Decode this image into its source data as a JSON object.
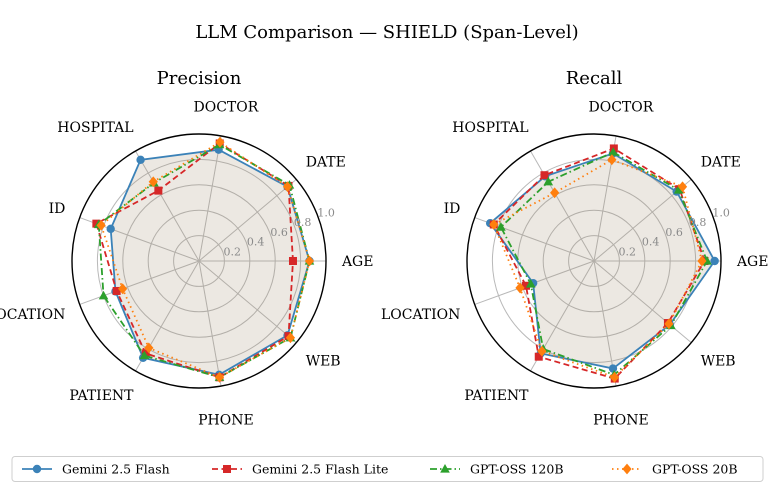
{
  "chart_data": {
    "type": "radar",
    "title": "LLM Comparison — SHIELD (Span-Level)",
    "categories": [
      "AGE",
      "DATE",
      "DOCTOR",
      "HOSPITAL",
      "ID",
      "LOCATION",
      "PATIENT",
      "PHONE",
      "WEB"
    ],
    "radial_ticks": [
      "0.2",
      "0.4",
      "0.6",
      "0.8",
      "1.0"
    ],
    "rlim": [
      0,
      1.0
    ],
    "grid": true,
    "legend_position": "bottom",
    "series_styles": [
      {
        "name": "Gemini 2.5 Flash",
        "color": "#3b82b8",
        "marker": "circle",
        "dash": "solid"
      },
      {
        "name": "Gemini 2.5 Flash Lite",
        "color": "#d62728",
        "marker": "square",
        "dash": "dashed"
      },
      {
        "name": "GPT-OSS 120B",
        "color": "#2ca02c",
        "marker": "triangle",
        "dash": "dashdot"
      },
      {
        "name": "GPT-OSS 20B",
        "color": "#ff7f0e",
        "marker": "diamond",
        "dash": "dotted"
      }
    ],
    "panels": [
      {
        "title": "Precision",
        "series": [
          {
            "name": "Gemini 2.5 Flash",
            "values": [
              0.87,
              0.91,
              0.89,
              0.92,
              0.74,
              0.7,
              0.88,
              0.91,
              0.91
            ]
          },
          {
            "name": "Gemini 2.5 Flash Lite",
            "values": [
              0.74,
              0.92,
              0.94,
              0.64,
              0.86,
              0.69,
              0.84,
              0.93,
              0.92
            ]
          },
          {
            "name": "GPT-OSS 120B",
            "values": [
              0.87,
              0.93,
              0.93,
              0.71,
              0.84,
              0.8,
              0.86,
              0.93,
              0.94
            ]
          },
          {
            "name": "GPT-OSS 20B",
            "values": [
              0.87,
              0.91,
              0.95,
              0.72,
              0.82,
              0.64,
              0.79,
              0.93,
              0.94
            ]
          }
        ]
      },
      {
        "title": "Recall",
        "series": [
          {
            "name": "Gemini 2.5 Flash",
            "values": [
              0.95,
              0.85,
              0.86,
              0.77,
              0.87,
              0.51,
              0.84,
              0.86,
              0.78
            ]
          },
          {
            "name": "Gemini 2.5 Flash Lite",
            "values": [
              0.87,
              0.88,
              0.9,
              0.78,
              0.84,
              0.57,
              0.87,
              0.94,
              0.76
            ]
          },
          {
            "name": "GPT-OSS 120B",
            "values": [
              0.89,
              0.87,
              0.87,
              0.72,
              0.78,
              0.53,
              0.8,
              0.91,
              0.79
            ]
          },
          {
            "name": "GPT-OSS 20B",
            "values": [
              0.85,
              0.91,
              0.81,
              0.62,
              0.84,
              0.62,
              0.82,
              0.93,
              0.77
            ]
          }
        ]
      }
    ]
  }
}
